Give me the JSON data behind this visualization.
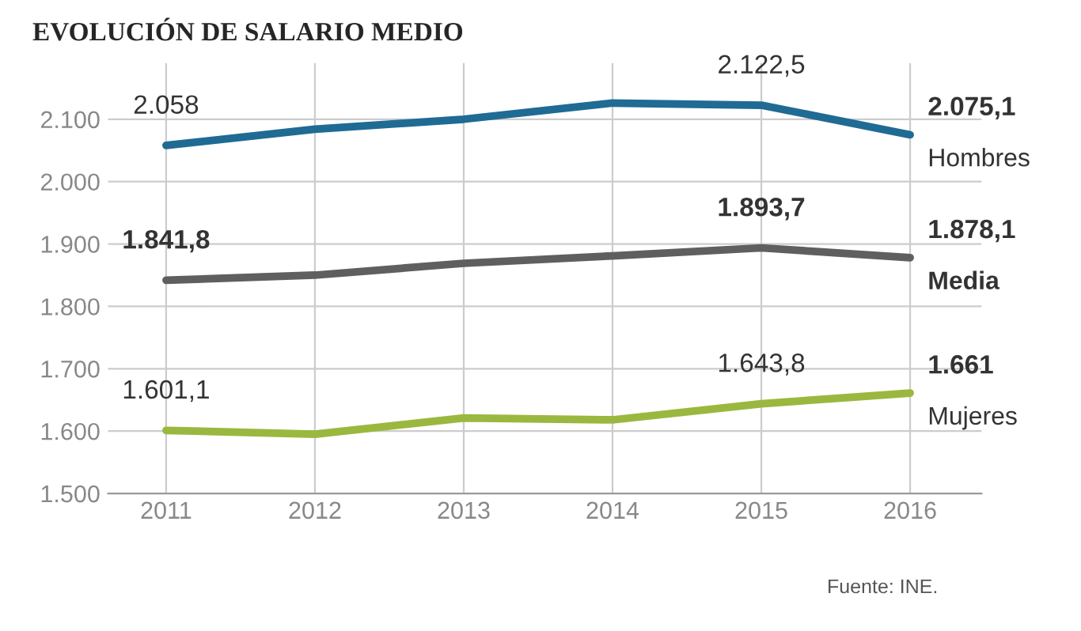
{
  "chart_data": {
    "type": "line",
    "title": "EVOLUCIÓN DE SALARIO MEDIO",
    "categories": [
      "2011",
      "2012",
      "2013",
      "2014",
      "2015",
      "2016"
    ],
    "series": [
      {
        "name": "Hombres",
        "color": "#1f6b94",
        "values": [
          2058,
          2084,
          2100,
          2126,
          2122.5,
          2075.1
        ],
        "value_labels": [
          "2.058",
          null,
          null,
          null,
          "2.122,5",
          "2.075,1"
        ]
      },
      {
        "name": "Media",
        "color": "#5f5f5f",
        "values": [
          1841.8,
          1850,
          1869,
          1881,
          1893.7,
          1878.1
        ],
        "value_labels": [
          "1.841,8",
          null,
          null,
          null,
          "1.893,7",
          "1.878,1"
        ]
      },
      {
        "name": "Mujeres",
        "color": "#9ab83f",
        "values": [
          1601.1,
          1595,
          1621,
          1618,
          1643.8,
          1661
        ],
        "value_labels": [
          "1.601,1",
          null,
          null,
          null,
          "1.643,8",
          "1.661"
        ]
      }
    ],
    "ylim": [
      1500,
      2190
    ],
    "yticks": [
      {
        "value": 1500,
        "label": "1.500"
      },
      {
        "value": 1600,
        "label": "1.600"
      },
      {
        "value": 1700,
        "label": "1.700"
      },
      {
        "value": 1800,
        "label": "1.800"
      },
      {
        "value": 1900,
        "label": "1.900"
      },
      {
        "value": 2000,
        "label": "2.000"
      },
      {
        "value": 2100,
        "label": "2.100"
      }
    ],
    "grid": true,
    "marker": "none",
    "line_style": "solid",
    "annotations": [
      "Fuente: INE."
    ]
  }
}
